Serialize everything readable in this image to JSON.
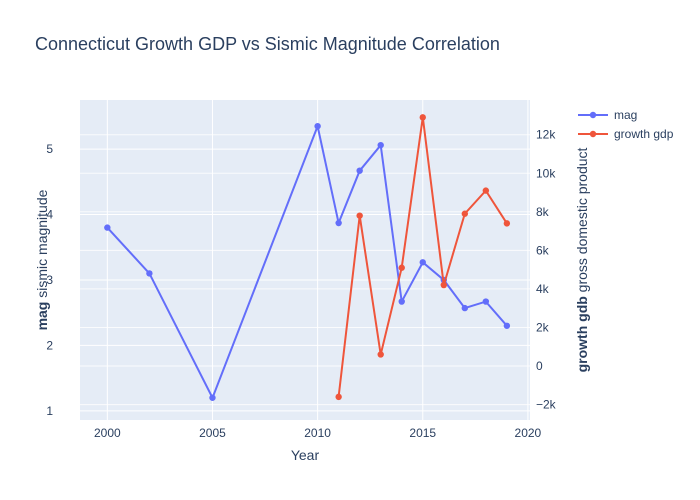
{
  "chart_data": {
    "type": "line",
    "title": "Connecticut Growth GDP vs Sismic Magnitude Correlation",
    "xlabel": "Year",
    "ylabel_bold": "mag",
    "ylabel_rest": " sismic magnitude",
    "y2label_bold": "growth gdb",
    "y2label_rest": " gross domestic product",
    "xlim": [
      1998.7,
      2020.1
    ],
    "ylim": [
      0.86,
      5.75
    ],
    "y2lim": [
      -2800,
      13800
    ],
    "xticks": [
      2000,
      2005,
      2010,
      2015,
      2020
    ],
    "yticks": [
      1,
      2,
      3,
      4,
      5
    ],
    "y2ticks": [
      -2000,
      0,
      2000,
      4000,
      6000,
      8000,
      10000,
      12000
    ],
    "y2ticklabels": [
      "−2k",
      "0",
      "2k",
      "4k",
      "6k",
      "8k",
      "10k",
      "12k"
    ],
    "grid": true,
    "legend_position": "top-right",
    "series": [
      {
        "name": "mag",
        "color": "#636efa",
        "axis": "y",
        "x": [
          2000,
          2002,
          2005,
          2010,
          2011,
          2012,
          2013,
          2014,
          2015,
          2016,
          2017,
          2018,
          2019
        ],
        "y": [
          3.8,
          3.1,
          1.2,
          5.35,
          3.87,
          4.67,
          5.06,
          2.67,
          3.27,
          3.0,
          2.57,
          2.67,
          2.3
        ]
      },
      {
        "name": "growth gdp",
        "color": "#ef553b",
        "axis": "y2",
        "x": [
          2011,
          2012,
          2013,
          2014,
          2015,
          2016,
          2017,
          2018,
          2019
        ],
        "y": [
          -1600,
          7800,
          600,
          5100,
          12900,
          4200,
          7900,
          9100,
          7400
        ]
      }
    ]
  }
}
